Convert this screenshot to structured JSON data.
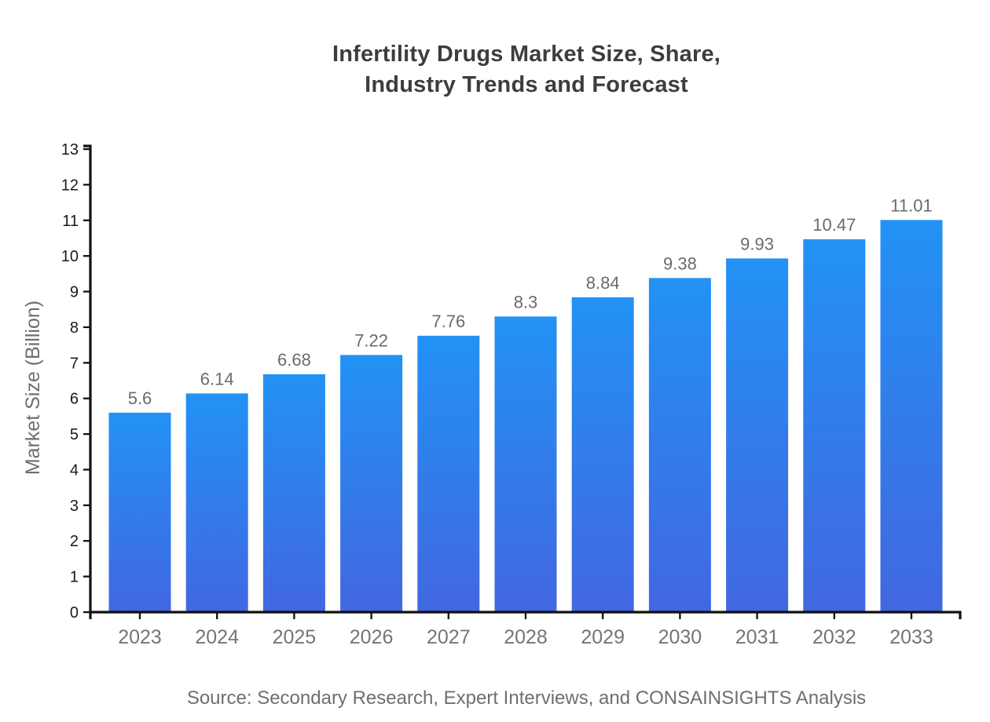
{
  "title": {
    "line1": "Infertility Drugs Market Size, Share,",
    "line2": "Industry Trends and Forecast"
  },
  "source": "Source: Secondary Research, Expert Interviews, and CONSAINSIGHTS Analysis",
  "chart_data": {
    "type": "bar",
    "title": "Infertility Drugs Market Size, Share, Industry Trends and Forecast",
    "categories": [
      "2023",
      "2024",
      "2025",
      "2026",
      "2027",
      "2028",
      "2029",
      "2030",
      "2031",
      "2032",
      "2033"
    ],
    "values": [
      5.6,
      6.14,
      6.68,
      7.22,
      7.76,
      8.3,
      8.84,
      9.38,
      9.93,
      10.47,
      11.01
    ],
    "value_labels": [
      "5.6",
      "6.14",
      "6.68",
      "7.22",
      "7.76",
      "8.3",
      "8.84",
      "9.38",
      "9.93",
      "10.47",
      "11.01"
    ],
    "xlabel": "",
    "ylabel": "Market Size (Billion)",
    "ylim": [
      0,
      13
    ],
    "ytick_step": 1,
    "yticks": [
      0,
      1,
      2,
      3,
      4,
      5,
      6,
      7,
      8,
      9,
      10,
      11,
      12,
      13
    ],
    "grid": false,
    "legend": "none",
    "colors": {
      "bar_gradient_top": "#2292F4",
      "bar_gradient_bottom": "#4267E0",
      "axis": "#111111",
      "ytick_label": "#1a1a1a",
      "xtick_label": "#757575",
      "value_label": "#6b6b6b",
      "title": "#3d3d3d",
      "source": "#6f6f6f",
      "background": "#ffffff"
    }
  }
}
